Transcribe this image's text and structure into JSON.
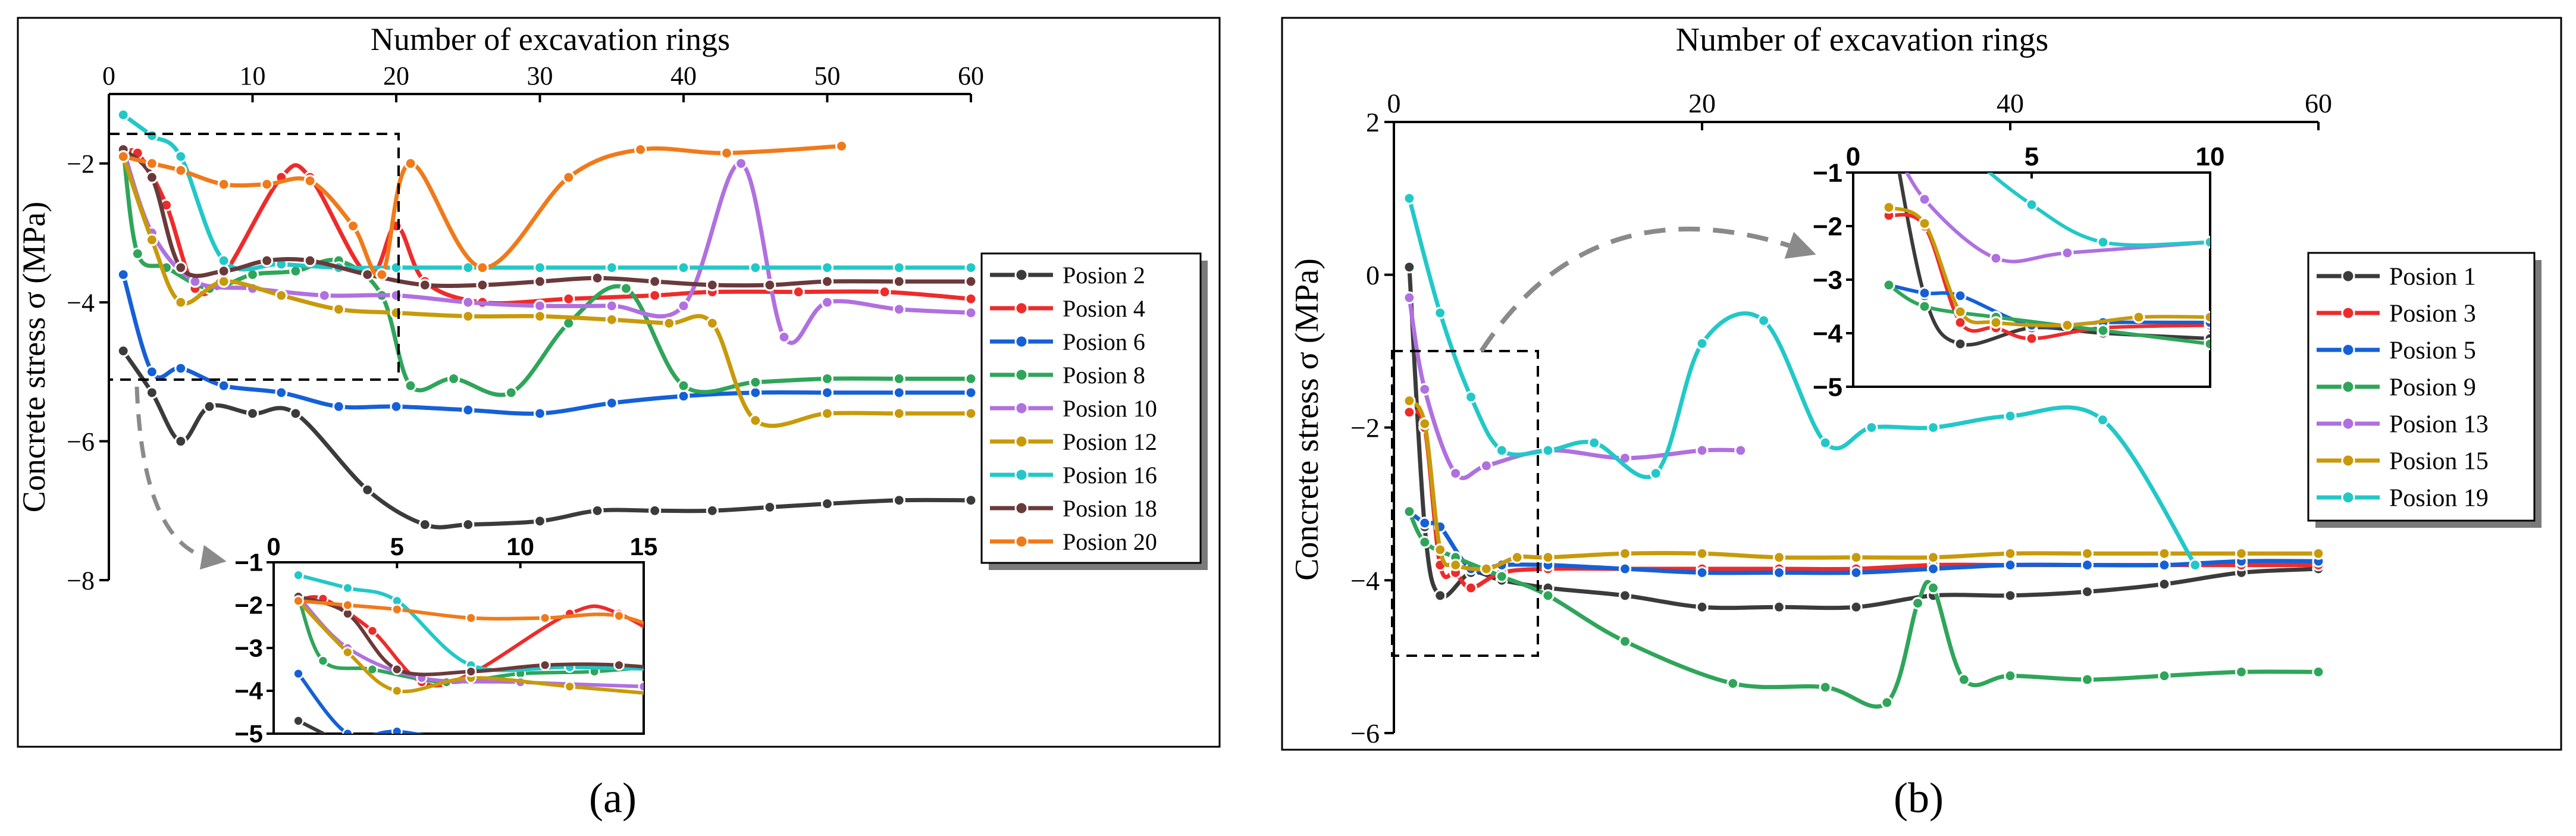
{
  "colors": {
    "Posion 1": "#3b3b3b",
    "Posion 2": "#3b3b3b",
    "Posion 3": "#ee2b2b",
    "Posion 4": "#ee2b2b",
    "Posion 5": "#1560d6",
    "Posion 6": "#1560d6",
    "Posion 8": "#2fa55a",
    "Posion 9": "#2fa55a",
    "Posion 10": "#b070e0",
    "Posion 13": "#b070e0",
    "Posion 12": "#c89a0a",
    "Posion 15": "#c89a0a",
    "Posion 16": "#22c8c8",
    "Posion 19": "#22c8c8",
    "Posion 18": "#6a3a3a",
    "Posion 20": "#f07a1a"
  },
  "chart_data": [
    {
      "type": "line",
      "panel_label": "(a)",
      "xlabel": "Number of excavation rings",
      "ylabel": "Concrete stress σ (MPa)",
      "xlim": [
        0,
        60
      ],
      "ylim": [
        -8,
        -1
      ],
      "x_ticks": [
        0,
        10,
        20,
        30,
        40,
        50,
        60
      ],
      "y_ticks": [
        -8,
        -6,
        -4,
        -2
      ],
      "x_axis_position": "top",
      "legend_position": "right",
      "series": [
        {
          "name": "Posion 2",
          "x": [
            1,
            3,
            5,
            7,
            10,
            13,
            18,
            22,
            25,
            30,
            34,
            38,
            42,
            46,
            50,
            55,
            60
          ],
          "y": [
            -4.7,
            -5.3,
            -6.0,
            -5.5,
            -5.6,
            -5.6,
            -6.7,
            -7.2,
            -7.2,
            -7.15,
            -7.0,
            -7.0,
            -7.0,
            -6.95,
            -6.9,
            -6.85,
            -6.85
          ]
        },
        {
          "name": "Posion 4",
          "x": [
            1,
            2,
            4,
            6,
            8,
            12,
            14,
            18,
            20,
            22,
            26,
            32,
            38,
            42,
            48,
            54,
            60
          ],
          "y": [
            -1.9,
            -1.85,
            -2.6,
            -3.8,
            -3.6,
            -2.2,
            -2.2,
            -3.6,
            -2.9,
            -3.7,
            -4.0,
            -3.95,
            -3.9,
            -3.85,
            -3.85,
            -3.85,
            -3.95
          ]
        },
        {
          "name": "Posion 6",
          "x": [
            1,
            3,
            5,
            8,
            12,
            16,
            20,
            25,
            30,
            35,
            40,
            45,
            50,
            55,
            60
          ],
          "y": [
            -3.6,
            -5.0,
            -4.95,
            -5.2,
            -5.3,
            -5.5,
            -5.5,
            -5.55,
            -5.6,
            -5.45,
            -5.35,
            -5.3,
            -5.3,
            -5.3,
            -5.3
          ]
        },
        {
          "name": "Posion 8",
          "x": [
            1,
            2,
            4,
            7,
            10,
            13,
            16,
            19,
            21,
            24,
            28,
            32,
            36,
            40,
            45,
            50,
            55,
            60
          ],
          "y": [
            -1.8,
            -3.3,
            -3.5,
            -3.8,
            -3.6,
            -3.55,
            -3.4,
            -3.9,
            -5.2,
            -5.1,
            -5.3,
            -4.3,
            -3.8,
            -5.2,
            -5.15,
            -5.1,
            -5.1,
            -5.1
          ]
        },
        {
          "name": "Posion 10",
          "x": [
            1,
            3,
            6,
            10,
            15,
            20,
            25,
            30,
            35,
            40,
            44,
            47,
            50,
            55,
            60
          ],
          "y": [
            -1.8,
            -3.0,
            -3.7,
            -3.8,
            -3.9,
            -3.9,
            -4.0,
            -4.05,
            -4.05,
            -4.05,
            -2.0,
            -4.5,
            -4.0,
            -4.1,
            -4.15
          ]
        },
        {
          "name": "Posion 12",
          "x": [
            1,
            3,
            5,
            8,
            12,
            16,
            20,
            25,
            30,
            35,
            39,
            42,
            45,
            50,
            55,
            60
          ],
          "y": [
            -1.9,
            -3.1,
            -4.0,
            -3.7,
            -3.9,
            -4.1,
            -4.15,
            -4.2,
            -4.2,
            -4.25,
            -4.3,
            -4.3,
            -5.7,
            -5.6,
            -5.6,
            -5.6
          ]
        },
        {
          "name": "Posion 16",
          "x": [
            1,
            3,
            5,
            8,
            12,
            16,
            20,
            25,
            30,
            35,
            40,
            45,
            50,
            55,
            60
          ],
          "y": [
            -1.3,
            -1.6,
            -1.9,
            -3.4,
            -3.45,
            -3.5,
            -3.5,
            -3.5,
            -3.5,
            -3.5,
            -3.5,
            -3.5,
            -3.5,
            -3.5,
            -3.5
          ]
        },
        {
          "name": "Posion 18",
          "x": [
            1,
            3,
            5,
            8,
            11,
            14,
            18,
            22,
            26,
            30,
            34,
            38,
            42,
            46,
            50,
            55,
            60
          ],
          "y": [
            -1.8,
            -2.2,
            -3.5,
            -3.55,
            -3.4,
            -3.4,
            -3.6,
            -3.75,
            -3.75,
            -3.7,
            -3.65,
            -3.7,
            -3.75,
            -3.75,
            -3.7,
            -3.7,
            -3.7
          ]
        },
        {
          "name": "Posion 20",
          "x": [
            1,
            3,
            5,
            8,
            11,
            14,
            17,
            19,
            21,
            26,
            32,
            37,
            43,
            51
          ],
          "y": [
            -1.9,
            -2.0,
            -2.1,
            -2.3,
            -2.3,
            -2.25,
            -2.9,
            -3.6,
            -2.0,
            -3.5,
            -2.2,
            -1.8,
            -1.85,
            -1.75
          ]
        }
      ],
      "inset": {
        "xlim": [
          0,
          15
        ],
        "ylim": [
          -5,
          -1
        ],
        "x_ticks": [
          0,
          5,
          10,
          15
        ],
        "y_ticks": [
          -5,
          -4,
          -3,
          -2,
          -1
        ],
        "zoom_box": {
          "xlim": [
            0,
            20
          ],
          "ylim": [
            -5,
            -1.3
          ]
        }
      }
    },
    {
      "type": "line",
      "panel_label": "(b)",
      "xlabel": "Number of excavation rings",
      "ylabel": "Concrete stress σ (MPa)",
      "xlim": [
        0,
        60
      ],
      "ylim": [
        -6,
        2
      ],
      "x_ticks": [
        0,
        20,
        40,
        60
      ],
      "y_ticks": [
        -6,
        -4,
        -2,
        0,
        2
      ],
      "x_axis_position": "top",
      "legend_position": "right",
      "series": [
        {
          "name": "Posion 1",
          "x": [
            1,
            2,
            3,
            5,
            7,
            10,
            15,
            20,
            25,
            30,
            35,
            40,
            45,
            50,
            55,
            60
          ],
          "y": [
            0.1,
            -3.3,
            -4.2,
            -3.9,
            -4.0,
            -4.1,
            -4.2,
            -4.35,
            -4.35,
            -4.35,
            -4.2,
            -4.2,
            -4.15,
            -4.05,
            -3.9,
            -3.85
          ]
        },
        {
          "name": "Posion 3",
          "x": [
            1,
            2,
            3,
            4,
            5,
            7,
            10,
            15,
            20,
            25,
            30,
            35,
            40,
            45,
            50,
            55,
            60
          ],
          "y": [
            -1.8,
            -2.0,
            -3.8,
            -3.9,
            -4.1,
            -3.9,
            -3.85,
            -3.85,
            -3.85,
            -3.85,
            -3.85,
            -3.8,
            -3.8,
            -3.8,
            -3.8,
            -3.8,
            -3.8
          ]
        },
        {
          "name": "Posion 5",
          "x": [
            1,
            2,
            3,
            5,
            7,
            10,
            15,
            20,
            25,
            30,
            35,
            40,
            45,
            50,
            55,
            60
          ],
          "y": [
            -3.1,
            -3.25,
            -3.3,
            -3.85,
            -3.8,
            -3.8,
            -3.85,
            -3.9,
            -3.9,
            -3.9,
            -3.85,
            -3.8,
            -3.8,
            -3.8,
            -3.75,
            -3.75
          ]
        },
        {
          "name": "Posion 9",
          "x": [
            1,
            2,
            4,
            7,
            10,
            15,
            22,
            28,
            32,
            34,
            35,
            37,
            40,
            45,
            50,
            55,
            60
          ],
          "y": [
            -3.1,
            -3.5,
            -3.7,
            -3.95,
            -4.2,
            -4.8,
            -5.35,
            -5.4,
            -5.6,
            -4.3,
            -4.1,
            -5.3,
            -5.25,
            -5.3,
            -5.25,
            -5.2,
            -5.2
          ]
        },
        {
          "name": "Posion 13",
          "x": [
            1,
            2,
            4,
            6,
            10,
            15,
            20,
            22.5
          ],
          "y": [
            -0.3,
            -1.5,
            -2.6,
            -2.5,
            -2.3,
            -2.4,
            -2.3,
            -2.3
          ]
        },
        {
          "name": "Posion 15",
          "x": [
            1,
            2,
            3,
            4,
            6,
            8,
            10,
            15,
            20,
            25,
            30,
            35,
            40,
            45,
            50,
            55,
            60
          ],
          "y": [
            -1.65,
            -1.95,
            -3.6,
            -3.8,
            -3.85,
            -3.7,
            -3.7,
            -3.65,
            -3.65,
            -3.7,
            -3.7,
            -3.7,
            -3.65,
            -3.65,
            -3.65,
            -3.65,
            -3.65
          ]
        },
        {
          "name": "Posion 19",
          "x": [
            1,
            3,
            5,
            7,
            10,
            13,
            17,
            20,
            24,
            28,
            31,
            35,
            40,
            46,
            52
          ],
          "y": [
            1.0,
            -0.5,
            -1.6,
            -2.3,
            -2.3,
            -2.2,
            -2.6,
            -0.9,
            -0.6,
            -2.2,
            -2.0,
            -2.0,
            -1.85,
            -1.9,
            -3.8
          ]
        }
      ],
      "inset": {
        "xlim": [
          0,
          10
        ],
        "ylim": [
          -5,
          -1
        ],
        "x_ticks": [
          0,
          5,
          10
        ],
        "y_ticks": [
          -5,
          -4,
          -3,
          -2,
          -1
        ],
        "zoom_box": {
          "xlim": [
            0,
            9.5
          ],
          "ylim": [
            -5,
            -1
          ]
        }
      }
    }
  ]
}
